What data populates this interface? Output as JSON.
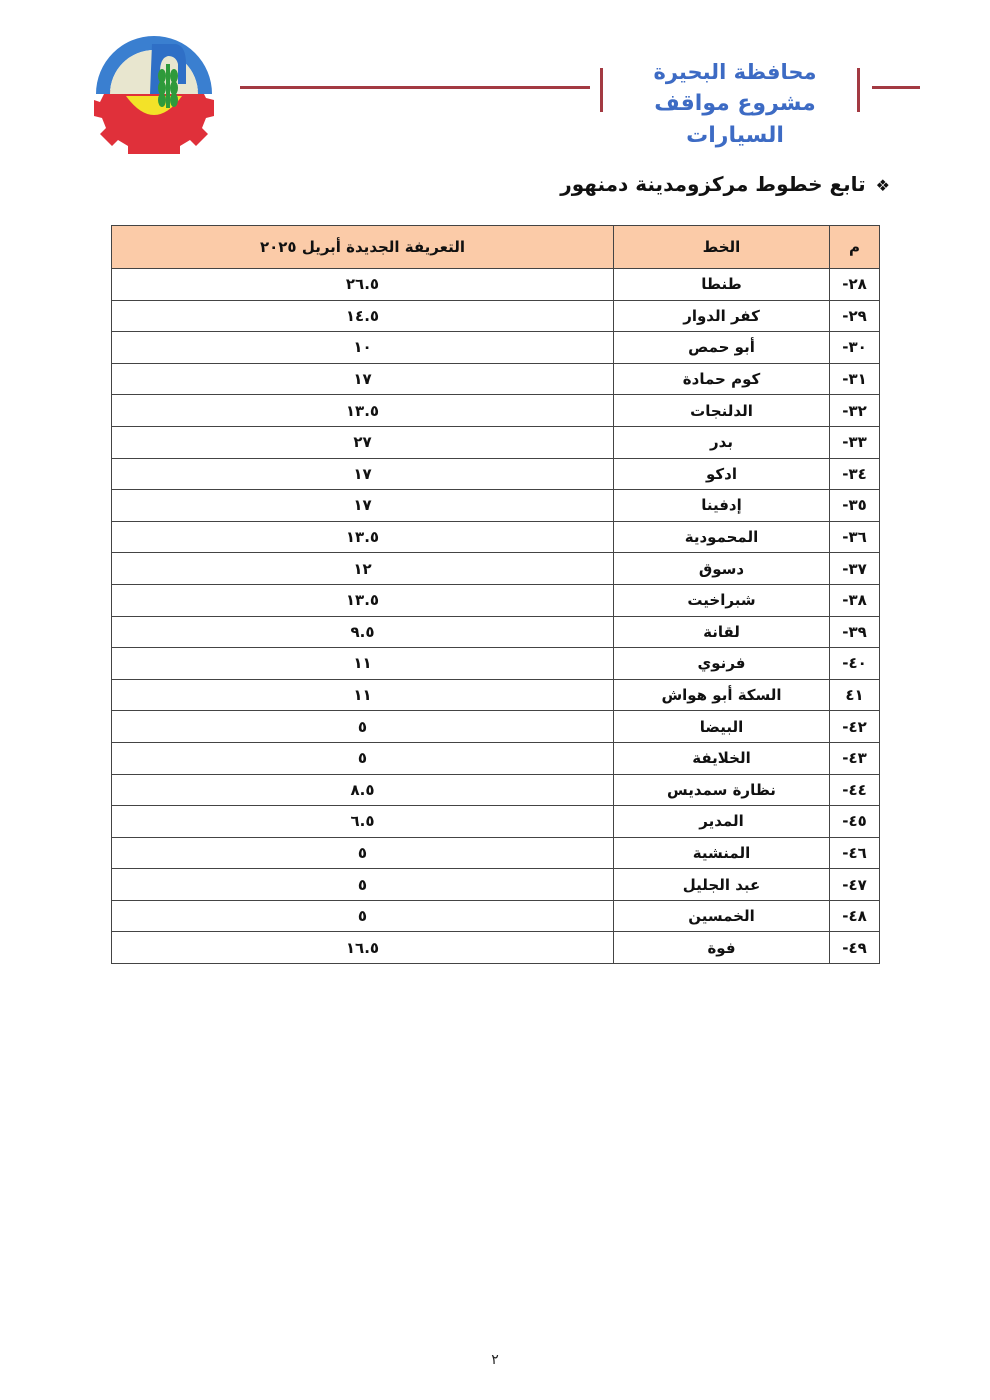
{
  "header": {
    "logo_text": "البحيرة",
    "org_line1": "محافظة البحيرة",
    "org_line2": "مشروع مواقف السيارات",
    "colors": {
      "accent_line": "#a33a42",
      "org_text": "#3d6bc4",
      "table_header_bg": "#fbcba8"
    }
  },
  "section": {
    "bullet_icon": "diamond-dots-icon",
    "bullet": "❖",
    "title": "تابع خطوط مركزومدينة دمنهور"
  },
  "table": {
    "columns": [
      "م",
      "الخط",
      "التعريفة الجديدة أبريل ٢٠٢٥"
    ],
    "rows": [
      [
        "٢٨-",
        "طنطا",
        "٢٦.٥"
      ],
      [
        "٢٩-",
        "كفر الدوار",
        "١٤.٥"
      ],
      [
        "٣٠-",
        "أبو حمص",
        "١٠"
      ],
      [
        "٣١-",
        "كوم حمادة",
        "١٧"
      ],
      [
        "٣٢-",
        "الدلنجات",
        "١٣.٥"
      ],
      [
        "٣٣-",
        "بدر",
        "٢٧"
      ],
      [
        "٣٤-",
        "ادكو",
        "١٧"
      ],
      [
        "٣٥-",
        "إدفينا",
        "١٧"
      ],
      [
        "٣٦-",
        "المحمودية",
        "١٣.٥"
      ],
      [
        "٣٧-",
        "دسوق",
        "١٢"
      ],
      [
        "٣٨-",
        "شبراخيت",
        "١٣.٥"
      ],
      [
        "٣٩-",
        "لقانة",
        "٩.٥"
      ],
      [
        "٤٠-",
        "فرنوي",
        "١١"
      ],
      [
        "٤١",
        "السكة أبو هواش",
        "١١"
      ],
      [
        "٤٢-",
        "البيضا",
        "٥"
      ],
      [
        "٤٣-",
        "الخلايفة",
        "٥"
      ],
      [
        "٤٤-",
        "نظارة سمديس",
        "٨.٥"
      ],
      [
        "٤٥-",
        "المدير",
        "٦.٥"
      ],
      [
        "٤٦-",
        "المنشية",
        "٥"
      ],
      [
        "٤٧-",
        "عبد الجليل",
        "٥"
      ],
      [
        "٤٨-",
        "الخمسين",
        "٥"
      ],
      [
        "٤٩-",
        "فوة",
        "١٦.٥"
      ]
    ]
  },
  "footer": {
    "page_number": "٢"
  }
}
